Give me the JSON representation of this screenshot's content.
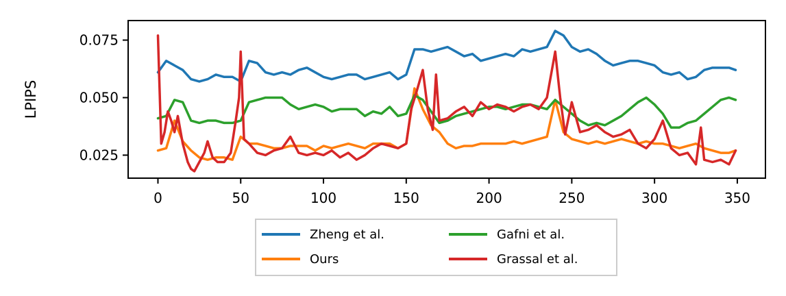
{
  "chart_data": {
    "type": "line",
    "title": "",
    "xlabel": "",
    "ylabel": "LPIPS",
    "xlim": [
      -18,
      367
    ],
    "ylim": [
      0.015,
      0.0835
    ],
    "xticks": [
      0,
      50,
      100,
      150,
      200,
      250,
      300,
      350
    ],
    "xtick_labels": [
      "0",
      "50",
      "100",
      "150",
      "200",
      "250",
      "300",
      "350"
    ],
    "yticks": [
      0.025,
      0.05,
      0.075
    ],
    "ytick_labels": [
      "0.025",
      "0.050",
      "0.075"
    ],
    "grid": false,
    "legend": {
      "placement": "below-center",
      "columns": 2,
      "entries": [
        "Zheng et al.",
        "Ours",
        "Gafni et al.",
        "Grassal et al."
      ]
    },
    "series": [
      {
        "name": "Zheng et al.",
        "color": "#1f77b4",
        "x": [
          0,
          5,
          10,
          15,
          20,
          25,
          30,
          35,
          40,
          45,
          50,
          55,
          60,
          65,
          70,
          75,
          80,
          85,
          90,
          95,
          100,
          105,
          110,
          115,
          120,
          125,
          130,
          135,
          140,
          145,
          150,
          155,
          160,
          165,
          170,
          175,
          180,
          185,
          190,
          195,
          200,
          205,
          210,
          215,
          220,
          225,
          230,
          235,
          240,
          245,
          250,
          255,
          260,
          265,
          270,
          275,
          280,
          285,
          290,
          295,
          300,
          305,
          310,
          315,
          320,
          325,
          330,
          335,
          340,
          345,
          349
        ],
        "values": [
          0.061,
          0.066,
          0.064,
          0.062,
          0.058,
          0.057,
          0.058,
          0.06,
          0.059,
          0.059,
          0.057,
          0.066,
          0.065,
          0.061,
          0.06,
          0.061,
          0.06,
          0.062,
          0.063,
          0.061,
          0.059,
          0.058,
          0.059,
          0.06,
          0.06,
          0.058,
          0.059,
          0.06,
          0.061,
          0.058,
          0.06,
          0.071,
          0.071,
          0.07,
          0.071,
          0.072,
          0.07,
          0.068,
          0.069,
          0.066,
          0.067,
          0.068,
          0.069,
          0.068,
          0.071,
          0.07,
          0.071,
          0.072,
          0.079,
          0.077,
          0.072,
          0.07,
          0.071,
          0.069,
          0.066,
          0.064,
          0.065,
          0.066,
          0.066,
          0.065,
          0.064,
          0.061,
          0.06,
          0.061,
          0.058,
          0.059,
          0.062,
          0.063,
          0.063,
          0.063,
          0.062
        ]
      },
      {
        "name": "Ours",
        "color": "#ff7f0e",
        "x": [
          0,
          5,
          10,
          15,
          20,
          25,
          30,
          35,
          40,
          45,
          50,
          55,
          60,
          65,
          70,
          75,
          80,
          85,
          90,
          95,
          100,
          105,
          110,
          115,
          120,
          125,
          130,
          135,
          140,
          145,
          150,
          155,
          160,
          165,
          170,
          175,
          180,
          185,
          190,
          195,
          200,
          205,
          210,
          215,
          220,
          225,
          230,
          235,
          240,
          245,
          250,
          255,
          260,
          265,
          270,
          275,
          280,
          285,
          290,
          295,
          300,
          305,
          310,
          315,
          320,
          325,
          330,
          335,
          340,
          345,
          349
        ],
        "values": [
          0.027,
          0.028,
          0.04,
          0.031,
          0.027,
          0.024,
          0.023,
          0.024,
          0.024,
          0.023,
          0.033,
          0.03,
          0.03,
          0.029,
          0.028,
          0.028,
          0.029,
          0.029,
          0.029,
          0.027,
          0.029,
          0.028,
          0.029,
          0.03,
          0.029,
          0.028,
          0.03,
          0.03,
          0.03,
          0.028,
          0.03,
          0.054,
          0.045,
          0.038,
          0.035,
          0.03,
          0.028,
          0.029,
          0.029,
          0.03,
          0.03,
          0.03,
          0.03,
          0.031,
          0.03,
          0.031,
          0.032,
          0.033,
          0.049,
          0.035,
          0.032,
          0.031,
          0.03,
          0.031,
          0.03,
          0.031,
          0.032,
          0.031,
          0.03,
          0.031,
          0.03,
          0.03,
          0.029,
          0.028,
          0.029,
          0.03,
          0.028,
          0.027,
          0.026,
          0.026,
          0.027
        ]
      },
      {
        "name": "Gafni et al.",
        "color": "#2ca02c",
        "x": [
          0,
          5,
          10,
          15,
          20,
          25,
          30,
          35,
          40,
          45,
          50,
          55,
          60,
          65,
          70,
          75,
          80,
          85,
          90,
          95,
          100,
          105,
          110,
          115,
          120,
          125,
          130,
          135,
          140,
          145,
          150,
          155,
          160,
          165,
          170,
          175,
          180,
          185,
          190,
          195,
          200,
          205,
          210,
          215,
          220,
          225,
          230,
          235,
          240,
          245,
          250,
          255,
          260,
          265,
          270,
          275,
          280,
          285,
          290,
          295,
          300,
          305,
          310,
          315,
          320,
          325,
          330,
          335,
          340,
          345,
          349
        ],
        "values": [
          0.041,
          0.042,
          0.049,
          0.048,
          0.04,
          0.039,
          0.04,
          0.04,
          0.039,
          0.039,
          0.04,
          0.048,
          0.049,
          0.05,
          0.05,
          0.05,
          0.047,
          0.045,
          0.046,
          0.047,
          0.046,
          0.044,
          0.045,
          0.045,
          0.045,
          0.042,
          0.044,
          0.043,
          0.046,
          0.042,
          0.043,
          0.051,
          0.049,
          0.044,
          0.039,
          0.04,
          0.042,
          0.043,
          0.044,
          0.045,
          0.046,
          0.046,
          0.045,
          0.046,
          0.047,
          0.047,
          0.046,
          0.045,
          0.049,
          0.046,
          0.043,
          0.04,
          0.038,
          0.039,
          0.038,
          0.04,
          0.042,
          0.045,
          0.048,
          0.05,
          0.047,
          0.043,
          0.037,
          0.037,
          0.039,
          0.04,
          0.043,
          0.046,
          0.049,
          0.05,
          0.049
        ]
      },
      {
        "name": "Grassal et al.",
        "color": "#d62728",
        "x": [
          0,
          2,
          4,
          6,
          8,
          10,
          12,
          15,
          18,
          20,
          22,
          25,
          28,
          30,
          33,
          36,
          40,
          44,
          47,
          49,
          50,
          52,
          55,
          60,
          65,
          70,
          75,
          80,
          85,
          90,
          95,
          100,
          105,
          110,
          115,
          120,
          125,
          130,
          135,
          140,
          145,
          150,
          153,
          156,
          160,
          163,
          166,
          168,
          170,
          175,
          180,
          185,
          190,
          195,
          200,
          205,
          210,
          215,
          220,
          225,
          230,
          235,
          238,
          240,
          243,
          246,
          250,
          255,
          260,
          265,
          270,
          275,
          280,
          285,
          290,
          295,
          300,
          305,
          310,
          315,
          320,
          325,
          328,
          330,
          335,
          340,
          345,
          349
        ],
        "values": [
          0.077,
          0.03,
          0.035,
          0.044,
          0.04,
          0.035,
          0.042,
          0.03,
          0.022,
          0.019,
          0.018,
          0.022,
          0.026,
          0.031,
          0.024,
          0.022,
          0.022,
          0.026,
          0.04,
          0.05,
          0.07,
          0.032,
          0.03,
          0.026,
          0.025,
          0.027,
          0.028,
          0.033,
          0.026,
          0.025,
          0.026,
          0.025,
          0.027,
          0.024,
          0.026,
          0.023,
          0.025,
          0.028,
          0.03,
          0.029,
          0.028,
          0.03,
          0.045,
          0.052,
          0.062,
          0.045,
          0.036,
          0.06,
          0.04,
          0.041,
          0.044,
          0.046,
          0.042,
          0.048,
          0.045,
          0.047,
          0.046,
          0.044,
          0.046,
          0.047,
          0.045,
          0.05,
          0.062,
          0.07,
          0.05,
          0.034,
          0.048,
          0.035,
          0.036,
          0.038,
          0.035,
          0.033,
          0.034,
          0.036,
          0.03,
          0.028,
          0.032,
          0.04,
          0.028,
          0.025,
          0.026,
          0.021,
          0.037,
          0.023,
          0.022,
          0.023,
          0.021,
          0.027
        ]
      }
    ]
  }
}
